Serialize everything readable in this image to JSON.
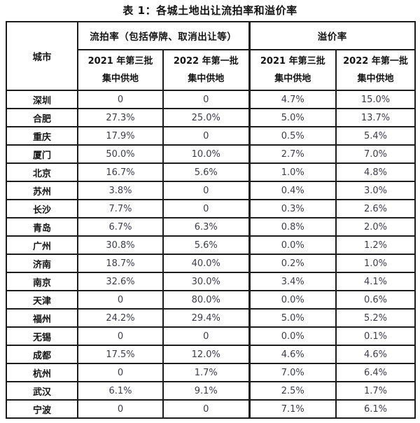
{
  "colors": {
    "background": "#ffffff",
    "border": "#1c1c1c",
    "header_text": "#141414",
    "value_text": "#3c3c4e"
  },
  "chart_data": {
    "type": "table",
    "title": "表 1：各城土地出让流拍率和溢价率",
    "corner_header": "城市",
    "group_headers": [
      "流拍率（包括停牌、取消出让等）",
      "溢价率"
    ],
    "sub_headers": [
      {
        "line1": "2021 年第三批",
        "line2": "集中供地"
      },
      {
        "line1": "2022 年第一批",
        "line2": "集中供地"
      },
      {
        "line1": "2021 年第三批",
        "line2": "集中供地"
      },
      {
        "line1": "2022 年第一批",
        "line2": "集中供地"
      }
    ],
    "columns": [
      "城市",
      "流拍率 2021年第三批集中供地",
      "流拍率 2022年第一批集中供地",
      "溢价率 2021年第三批集中供地",
      "溢价率 2022年第一批集中供地"
    ],
    "rows": [
      {
        "city": "深圳",
        "values": [
          "0",
          "0",
          "4.7%",
          "15.0%"
        ]
      },
      {
        "city": "合肥",
        "values": [
          "27.3%",
          "25.0%",
          "5.0%",
          "13.7%"
        ]
      },
      {
        "city": "重庆",
        "values": [
          "17.9%",
          "0",
          "0.5%",
          "5.4%"
        ]
      },
      {
        "city": "厦门",
        "values": [
          "50.0%",
          "10.0%",
          "2.7%",
          "7.0%"
        ]
      },
      {
        "city": "北京",
        "values": [
          "16.7%",
          "5.6%",
          "1.0%",
          "4.8%"
        ]
      },
      {
        "city": "苏州",
        "values": [
          "3.8%",
          "0",
          "0.4%",
          "3.0%"
        ]
      },
      {
        "city": "长沙",
        "values": [
          "7.7%",
          "0",
          "0.3%",
          "2.6%"
        ]
      },
      {
        "city": "青岛",
        "values": [
          "6.7%",
          "6.3%",
          "0.8%",
          "2.0%"
        ]
      },
      {
        "city": "广州",
        "values": [
          "30.8%",
          "5.6%",
          "0.0%",
          "1.2%"
        ]
      },
      {
        "city": "济南",
        "values": [
          "18.7%",
          "40.0%",
          "0.2%",
          "1.0%"
        ]
      },
      {
        "city": "南京",
        "values": [
          "32.6%",
          "30.0%",
          "3.4%",
          "4.1%"
        ]
      },
      {
        "city": "天津",
        "values": [
          "0",
          "80.0%",
          "0.0%",
          "0.6%"
        ]
      },
      {
        "city": "福州",
        "values": [
          "24.2%",
          "29.4%",
          "5.0%",
          "5.2%"
        ]
      },
      {
        "city": "无锡",
        "values": [
          "0",
          "0",
          "0.0%",
          "0.1%"
        ]
      },
      {
        "city": "成都",
        "values": [
          "17.5%",
          "12.0%",
          "4.6%",
          "4.6%"
        ]
      },
      {
        "city": "杭州",
        "values": [
          "0",
          "1.7%",
          "7.0%",
          "6.4%"
        ]
      },
      {
        "city": "武汉",
        "values": [
          "6.1%",
          "9.1%",
          "2.5%",
          "1.7%"
        ]
      },
      {
        "city": "宁波",
        "values": [
          "0",
          "0",
          "7.1%",
          "6.1%"
        ]
      }
    ]
  }
}
